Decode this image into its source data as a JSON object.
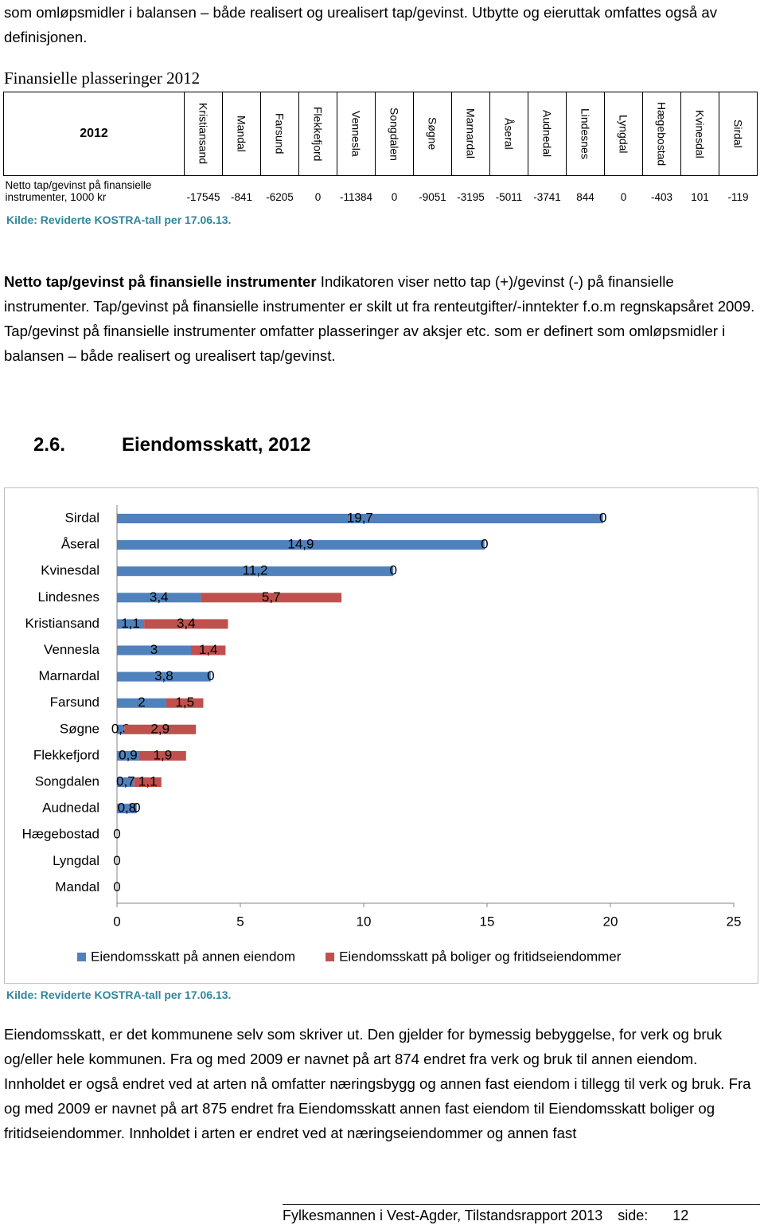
{
  "intro_text": "som omløpsmidler i balansen – både realisert og urealisert tap/gevinst. Utbytte og eieruttak omfattes også av definisjonen.",
  "table_title": "Finansielle plasseringer 2012",
  "table": {
    "corner": "2012",
    "columns": [
      "Kristiansand",
      "Mandal",
      "Farsund",
      "Flekkefjord",
      "Vennesla",
      "Songdalen",
      "Søgne",
      "Marnardal",
      "Åseral",
      "Audnedal",
      "Lindesnes",
      "Lyngdal",
      "Hægebostad",
      "Kvinesdal",
      "Sirdal"
    ],
    "row_label": "Netto tap/gevinst på finansielle instrumenter, 1000 kr",
    "values": [
      -17545,
      -841,
      -6205,
      0,
      -11384,
      0,
      -9051,
      -3195,
      -5011,
      -3741,
      844,
      0,
      -403,
      101,
      -119
    ]
  },
  "source_1": "Kilde: Reviderte KOSTRA-tall per 17.06.13.",
  "paragraph_2": {
    "bold": "Netto tap/gevinst på finansielle instrumenter",
    "text": "Indikatoren viser netto tap (+)/gevinst (-) på finansielle instrumenter. Tap/gevinst på finansielle instrumenter er skilt ut fra renteutgifter/-inntekter f.o.m regnskapsåret 2009. Tap/gevinst på finansielle instrumenter omfatter plasseringer av aksjer etc. som er definert som omløpsmidler i balansen – både realisert og urealisert tap/gevinst."
  },
  "section_number": "2.6.",
  "section_title": "Eiendomsskatt, 2012",
  "chart_data": {
    "type": "stacked-barh",
    "categories": [
      "Sirdal",
      "Åseral",
      "Kvinesdal",
      "Lindesnes",
      "Kristiansand",
      "Vennesla",
      "Marnardal",
      "Farsund",
      "Søgne",
      "Flekkefjord",
      "Songdalen",
      "Audnedal",
      "Hægebostad",
      "Lyngdal",
      "Mandal"
    ],
    "series": [
      {
        "name": "Eiendomsskatt på annen eiendom",
        "color": "#4f81bd",
        "values": [
          19.7,
          14.9,
          11.2,
          3.4,
          1.1,
          3,
          3.8,
          2,
          0.3,
          0.9,
          0.7,
          0.8,
          0,
          0,
          0
        ],
        "value_labels": [
          "19,7",
          "14,9",
          "11,2",
          "3,4",
          "1,1",
          "3",
          "3,8",
          "2",
          "0,3",
          "0,9",
          "0,7",
          "0,8",
          "0",
          "0",
          "0"
        ]
      },
      {
        "name": "Eiendomsskatt på boliger og fritidseiendommer",
        "color": "#c0504d",
        "values": [
          0,
          0,
          0,
          5.7,
          3.4,
          1.4,
          0,
          1.5,
          2.9,
          1.9,
          1.1,
          0,
          null,
          null,
          null
        ],
        "value_labels": [
          "0",
          "0",
          "0",
          "5,7",
          "3,4",
          "1,4",
          "0",
          "1,5",
          "2,9",
          "1,9",
          "1,1",
          "0",
          null,
          null,
          null
        ]
      }
    ],
    "xlim": [
      0,
      25
    ],
    "xticks": [
      0,
      5,
      10,
      15,
      20,
      25
    ],
    "legend": "bottom"
  },
  "source_2": "Kilde: Reviderte KOSTRA-tall per 17.06.13.",
  "paragraph_3": "Eiendomsskatt, er det kommunene selv som skriver ut. Den gjelder for bymessig bebyggelse, for verk og bruk og/eller hele kommunen. Fra og med 2009 er navnet på art 874 endret fra verk og bruk til annen eiendom. Innholdet er også endret ved at arten nå omfatter næringsbygg og annen fast eiendom i tillegg til verk og bruk. Fra og med 2009 er navnet på art 875 endret fra Eiendomsskatt annen fast eiendom til Eiendomsskatt boliger og fritidseiendommer. Innholdet i arten er endret ved at næringseiendommer og annen fast",
  "footer": {
    "text": "Fylkesmannen i Vest-Agder, Tilstandsrapport 2013",
    "side_label": "side:",
    "page": 12
  }
}
